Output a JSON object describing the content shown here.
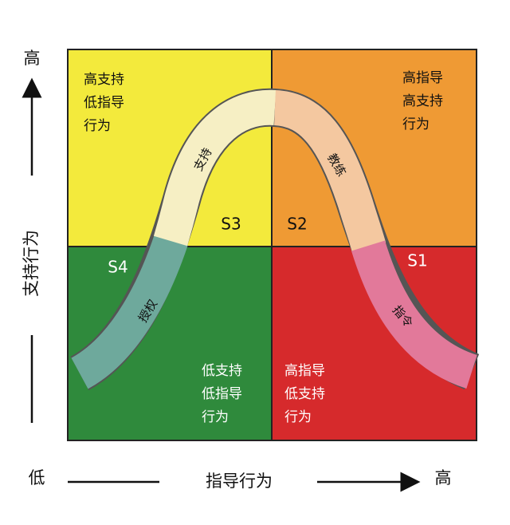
{
  "axes": {
    "y_high": "高",
    "y_label": "支持行为",
    "x_low": "低",
    "x_label": "指导行为",
    "x_high": "高"
  },
  "quadrants": {
    "top_left": {
      "stage": "S3",
      "lines": [
        "高支持",
        "低指导",
        "行为"
      ]
    },
    "top_right": {
      "stage": "S2",
      "lines": [
        "高指导",
        "高支持",
        "行为"
      ]
    },
    "bottom_left": {
      "stage": "S4",
      "lines": [
        "低支持",
        "低指导",
        "行为"
      ]
    },
    "bottom_right": {
      "stage": "S1",
      "lines": [
        "高指导",
        "低支持",
        "行为"
      ]
    }
  },
  "arrow_labels": {
    "support": "支持",
    "coach": "教练",
    "delegate": "授权",
    "direct": "指令"
  }
}
